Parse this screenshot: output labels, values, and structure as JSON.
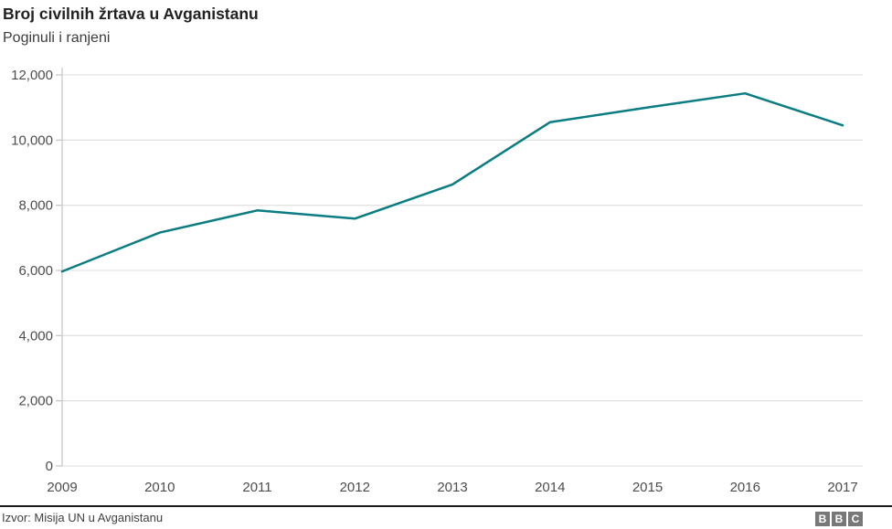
{
  "header": {
    "title": "Broj civilnih žrtava u Avganistanu",
    "subtitle": "Poginuli i ranjeni"
  },
  "footer": {
    "source": "Izvor: Misija UN u Avganistanu",
    "logo_letters": [
      "B",
      "B",
      "C"
    ]
  },
  "colors": {
    "line": "#0b7d82",
    "grid": "#e3e3e3",
    "axis": "#c8c8c8",
    "tick_label": "#4d4d4d",
    "title": "#222222",
    "subtitle": "#3c3c3c",
    "footer_text": "#404040",
    "separator": "#1a1a1a",
    "logo_bg": "#787878"
  },
  "chart_data": {
    "type": "line",
    "title": "Broj civilnih žrtava u Avganistanu",
    "subtitle": "Poginuli i ranjeni",
    "x": [
      "2009",
      "2010",
      "2011",
      "2012",
      "2013",
      "2014",
      "2015",
      "2016",
      "2017"
    ],
    "series": [
      {
        "name": "Poginuli i ranjeni",
        "values": [
          5969,
          7162,
          7842,
          7590,
          8638,
          10548,
          11002,
          11434,
          10453
        ]
      }
    ],
    "ylim": [
      0,
      12000
    ],
    "yticks": [
      {
        "value": 0,
        "label": "0"
      },
      {
        "value": 2000,
        "label": "2,000"
      },
      {
        "value": 4000,
        "label": "4,000"
      },
      {
        "value": 6000,
        "label": "6,000"
      },
      {
        "value": 8000,
        "label": "8,000"
      },
      {
        "value": 10000,
        "label": "10,000"
      },
      {
        "value": 12000,
        "label": "12,000"
      }
    ],
    "grid": true,
    "legend": "none",
    "line_color": "#0b7d82",
    "source": "Izvor: Misija UN u Avganistanu"
  }
}
